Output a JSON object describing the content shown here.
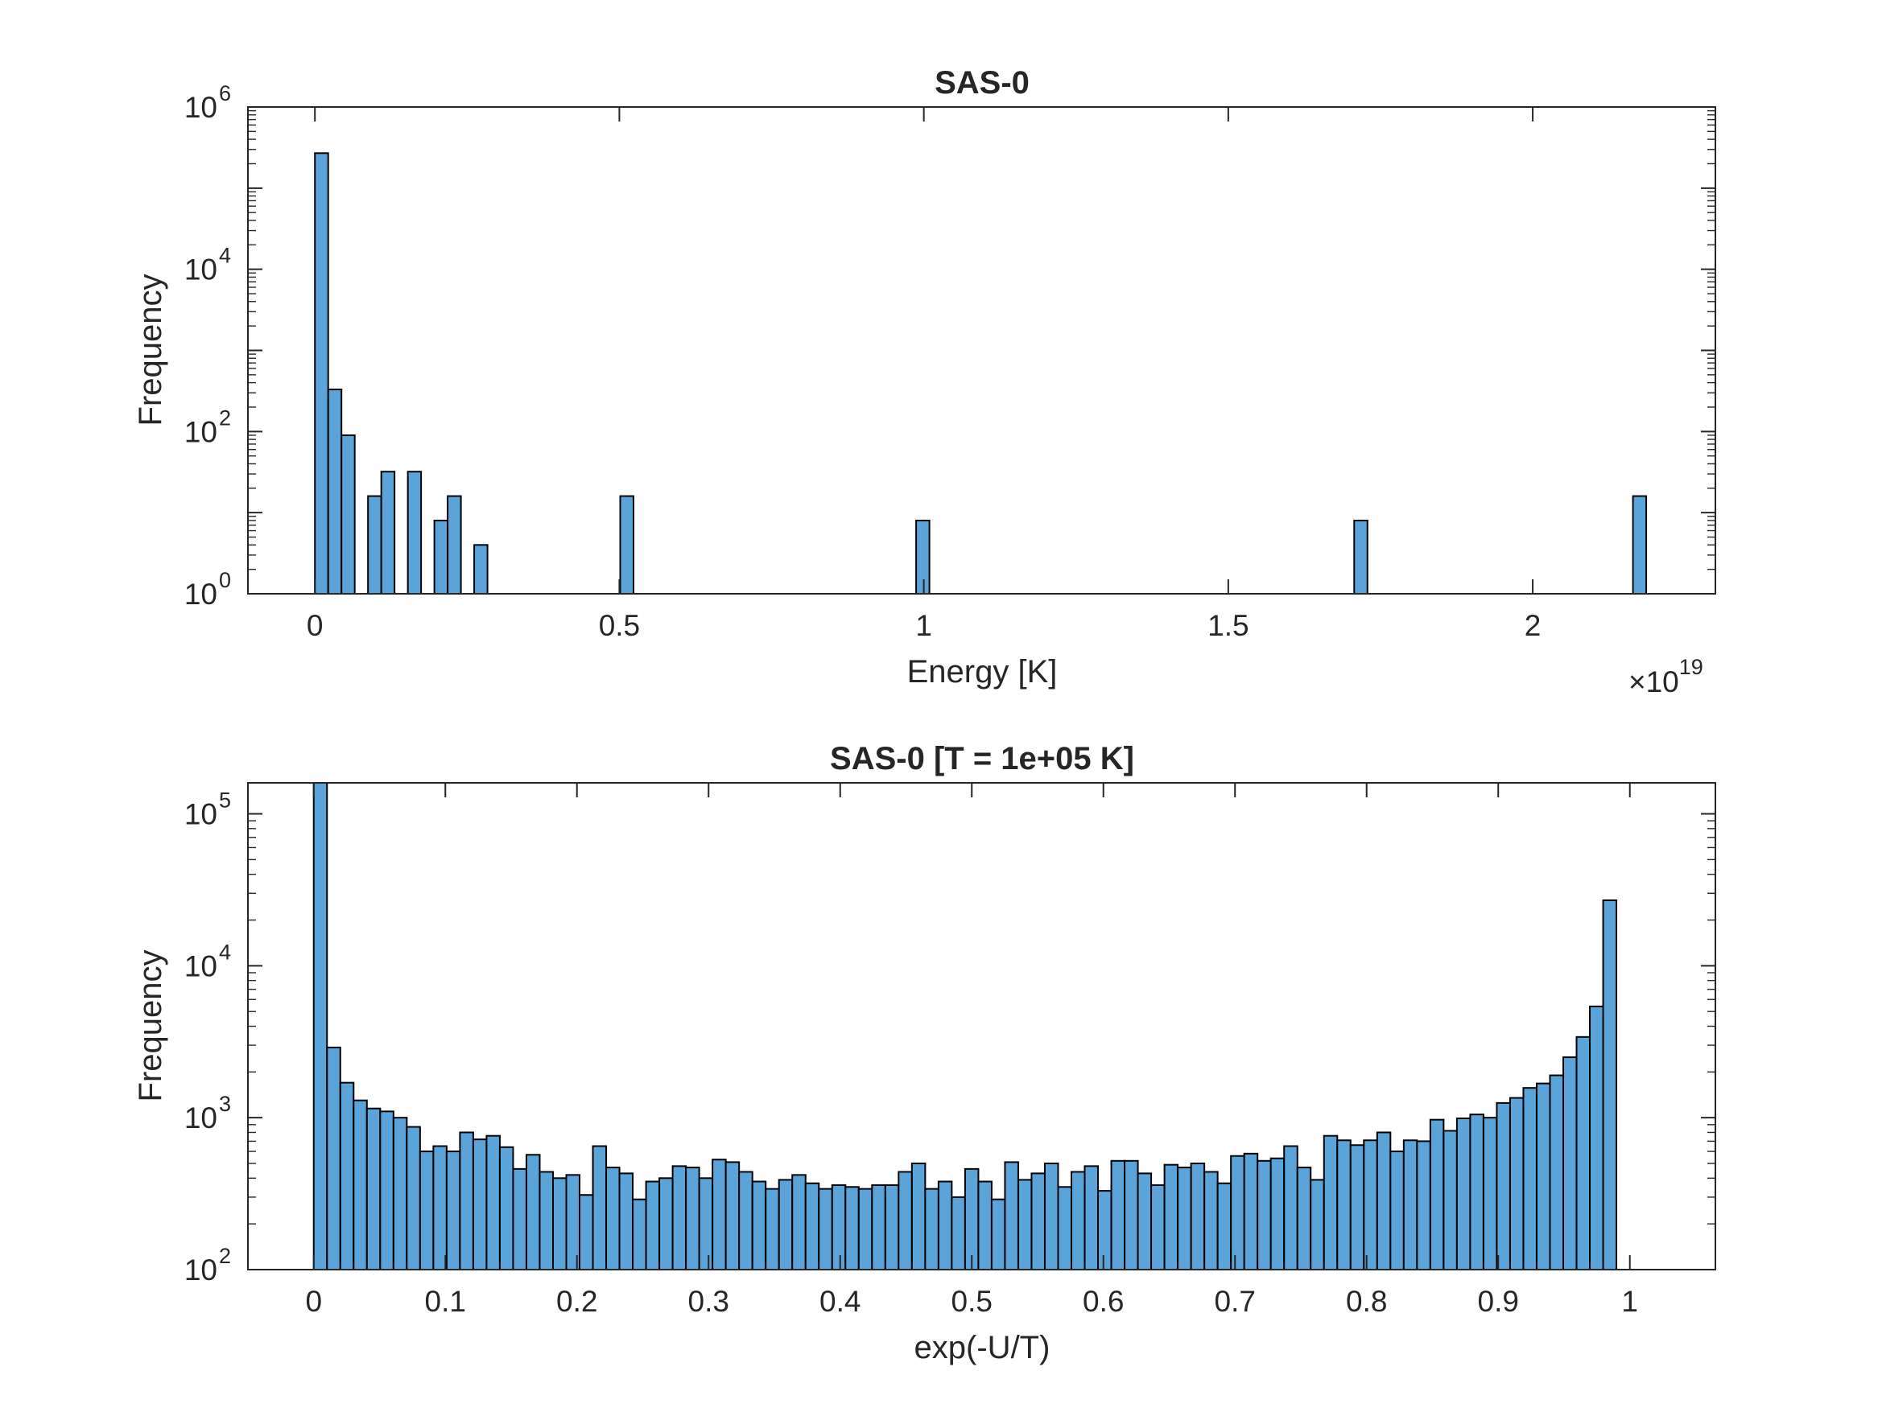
{
  "colors": {
    "bar_fill": "#5BA4D9",
    "bar_edge": "#000000",
    "axis": "#262626"
  },
  "chart_data": [
    {
      "type": "bar",
      "title": "SAS-0",
      "xlabel": "Energy [K]",
      "ylabel": "Frequency",
      "x_multiplier": "×10",
      "x_multiplier_exp": "19",
      "xscale": "linear",
      "yscale": "log",
      "xlim": [
        -0.11,
        2.3
      ],
      "ylim": [
        1,
        1000000
      ],
      "xticks": [
        0,
        0.5,
        1,
        1.5,
        2
      ],
      "xtick_labels": [
        "0",
        "0.5",
        "1",
        "1.5",
        "2"
      ],
      "ytick_exps": [
        "0",
        "2",
        "4",
        "6"
      ],
      "ytick_base": "10",
      "bin_width": 0.0218,
      "grid": false,
      "bins": [
        {
          "x": 0.0,
          "count": 270000
        },
        {
          "x": 0.0218,
          "count": 330
        },
        {
          "x": 0.0436,
          "count": 90
        },
        {
          "x": 0.0872,
          "count": 16
        },
        {
          "x": 0.109,
          "count": 32
        },
        {
          "x": 0.1526,
          "count": 32
        },
        {
          "x": 0.1962,
          "count": 8
        },
        {
          "x": 0.218,
          "count": 16
        },
        {
          "x": 0.2616,
          "count": 4
        },
        {
          "x": 0.5014,
          "count": 16
        },
        {
          "x": 0.9874,
          "count": 8
        },
        {
          "x": 1.7068,
          "count": 8
        },
        {
          "x": 2.1646,
          "count": 16
        }
      ]
    },
    {
      "type": "bar",
      "title": "SAS-0 [T = 1e+05 K]",
      "xlabel": "exp(-U/T)",
      "ylabel": "Frequency",
      "xscale": "linear",
      "yscale": "log",
      "xlim": [
        -0.05,
        1.065
      ],
      "ylim": [
        100,
        160000
      ],
      "xticks": [
        0,
        0.1,
        0.2,
        0.3,
        0.4,
        0.5,
        0.6,
        0.7,
        0.8,
        0.9,
        1
      ],
      "xtick_labels": [
        "0",
        "0.1",
        "0.2",
        "0.3",
        "0.4",
        "0.5",
        "0.6",
        "0.7",
        "0.8",
        "0.9",
        "1"
      ],
      "ytick_exps": [
        "2",
        "3",
        "4",
        "5"
      ],
      "ytick_base": "10",
      "bin_start": 0,
      "bin_width": 0.0101,
      "grid": false,
      "counts": [
        160000,
        2900,
        1700,
        1300,
        1150,
        1100,
        1000,
        870,
        600,
        650,
        600,
        800,
        720,
        760,
        640,
        460,
        570,
        440,
        400,
        420,
        310,
        650,
        470,
        430,
        290,
        380,
        400,
        480,
        470,
        400,
        530,
        510,
        440,
        380,
        340,
        390,
        420,
        370,
        340,
        360,
        350,
        340,
        360,
        360,
        440,
        500,
        340,
        380,
        300,
        460,
        380,
        290,
        510,
        390,
        430,
        500,
        350,
        440,
        480,
        330,
        520,
        520,
        430,
        360,
        490,
        470,
        500,
        440,
        370,
        560,
        580,
        520,
        540,
        650,
        470,
        390,
        760,
        710,
        660,
        710,
        800,
        600,
        710,
        700,
        970,
        820,
        990,
        1050,
        1000,
        1250,
        1350,
        1570,
        1680,
        1900,
        2500,
        3400,
        5400,
        27000
      ]
    }
  ]
}
